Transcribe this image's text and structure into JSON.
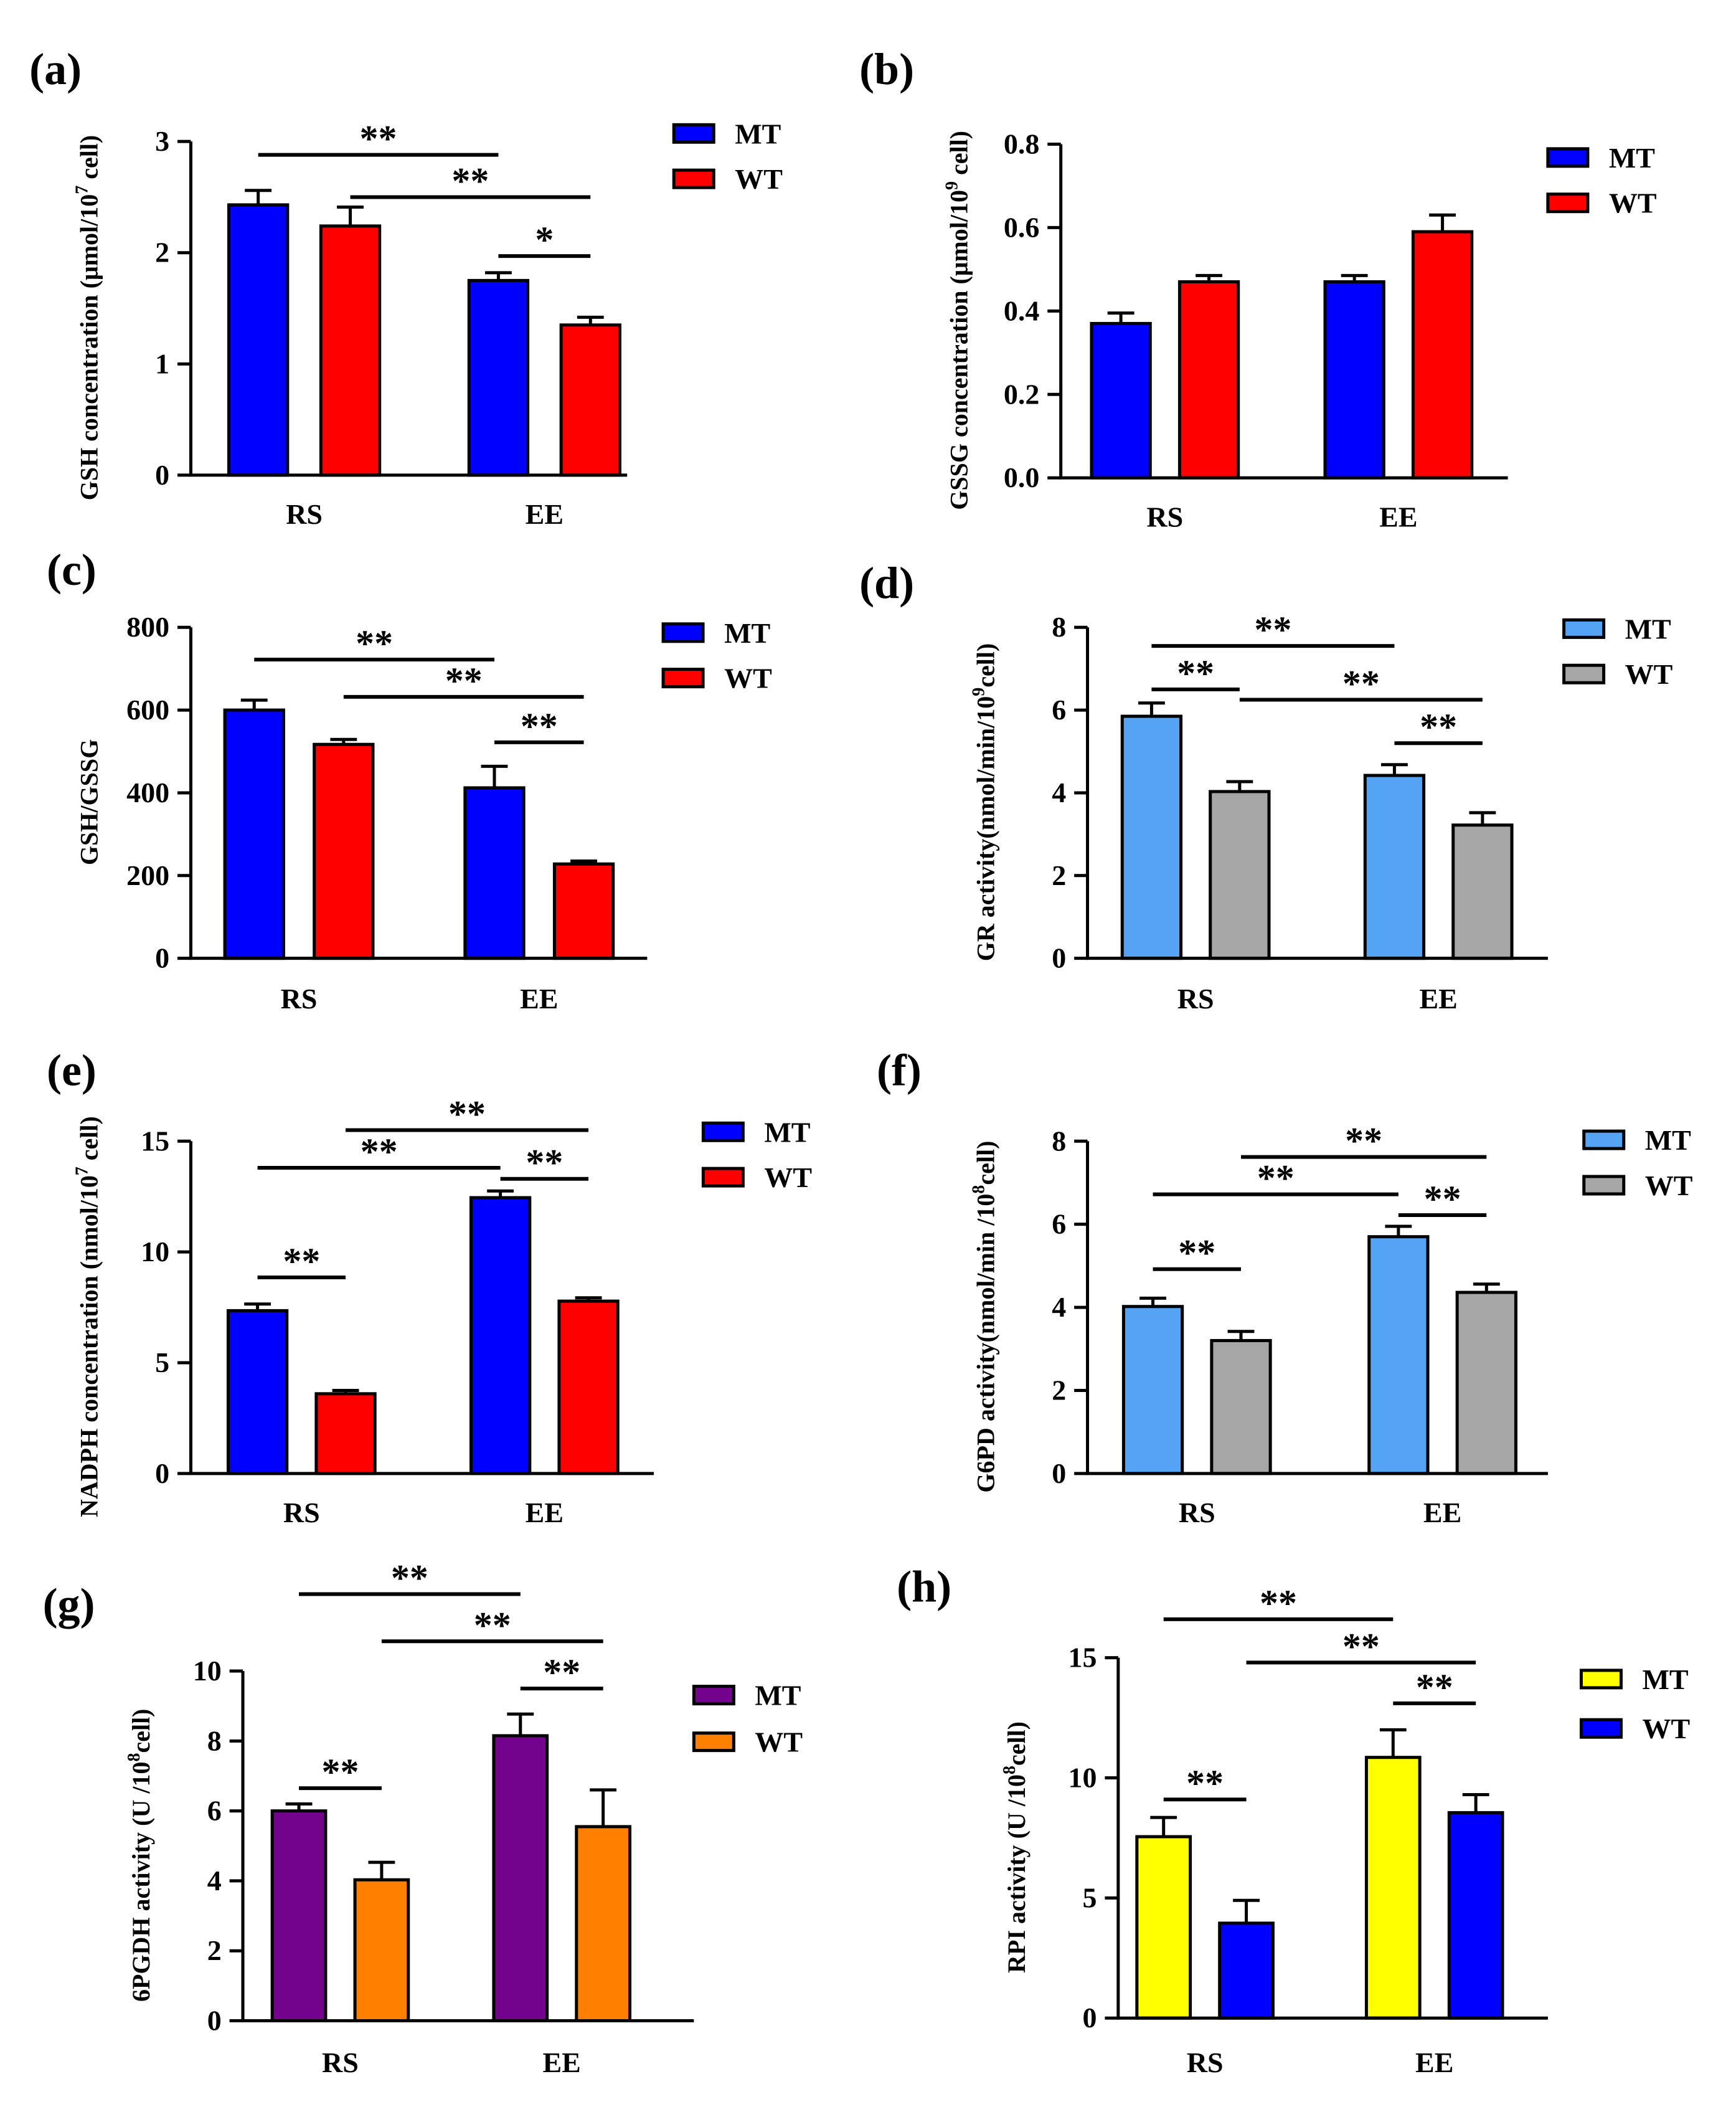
{
  "chart_data": [
    {
      "type": "bar",
      "panel_label": "(a)",
      "categories": [
        "RS",
        "EE"
      ],
      "ylabel": "GSH concentration (μmol/10",
      "ylabel_sup": "7",
      "ylabel_tail": " cell)",
      "ylim": [
        0,
        3
      ],
      "yticks": [
        0,
        1,
        2,
        3
      ],
      "ytick_labels": [
        "0",
        "1",
        "2",
        "3"
      ],
      "series": [
        {
          "name": "MT",
          "color": "#0000ff",
          "values": [
            2.43,
            1.75
          ],
          "errors": [
            0.13,
            0.07
          ]
        },
        {
          "name": "WT",
          "color": "#ff0000",
          "values": [
            2.24,
            1.35
          ],
          "errors": [
            0.17,
            0.07
          ]
        }
      ],
      "significance": [
        {
          "label": "**",
          "from": [
            0,
            0
          ],
          "to": [
            1,
            0
          ],
          "y": 2.88
        },
        {
          "label": "**",
          "from": [
            0,
            1
          ],
          "to": [
            1,
            1
          ],
          "y": 2.5
        },
        {
          "label": "*",
          "from": [
            1,
            0
          ],
          "to": [
            1,
            1
          ],
          "y": 1.97
        }
      ]
    },
    {
      "type": "bar",
      "panel_label": "(b)",
      "categories": [
        "RS",
        "EE"
      ],
      "ylabel": "GSSG concentration (μmol/10",
      "ylabel_sup": "9",
      "ylabel_tail": " cell)",
      "ylim": [
        0,
        0.8
      ],
      "yticks": [
        0,
        0.2,
        0.4,
        0.6,
        0.8
      ],
      "ytick_labels": [
        "0.0",
        "0.2",
        "0.4",
        "0.6",
        "0.8"
      ],
      "series": [
        {
          "name": "MT",
          "color": "#0000ff",
          "values": [
            0.37,
            0.47
          ],
          "errors": [
            0.025,
            0.015
          ]
        },
        {
          "name": "WT",
          "color": "#ff0000",
          "values": [
            0.47,
            0.59
          ],
          "errors": [
            0.015,
            0.04
          ]
        }
      ],
      "significance": []
    },
    {
      "type": "bar",
      "panel_label": "(c)",
      "categories": [
        "RS",
        "EE"
      ],
      "ylabel": "GSH/GSSG",
      "ylabel_sup": "",
      "ylabel_tail": "",
      "ylim": [
        0,
        800
      ],
      "yticks": [
        0,
        200,
        400,
        600,
        800
      ],
      "ytick_labels": [
        "0",
        "200",
        "400",
        "600",
        "800"
      ],
      "series": [
        {
          "name": "MT",
          "color": "#0000ff",
          "values": [
            600,
            412
          ],
          "errors": [
            24,
            52
          ]
        },
        {
          "name": "WT",
          "color": "#ff0000",
          "values": [
            517,
            228
          ],
          "errors": [
            12,
            7
          ]
        }
      ],
      "significance": [
        {
          "label": "**",
          "from": [
            0,
            0
          ],
          "to": [
            1,
            0
          ],
          "y": 722
        },
        {
          "label": "**",
          "from": [
            0,
            1
          ],
          "to": [
            1,
            1
          ],
          "y": 632
        },
        {
          "label": "**",
          "from": [
            1,
            0
          ],
          "to": [
            1,
            1
          ],
          "y": 522
        }
      ]
    },
    {
      "type": "bar",
      "panel_label": "(d)",
      "categories": [
        "RS",
        "EE"
      ],
      "ylabel": "GR activity(nmol/min/10",
      "ylabel_sup": "9",
      "ylabel_tail": "cell)",
      "ylim": [
        0,
        8
      ],
      "yticks": [
        0,
        2,
        4,
        6,
        8
      ],
      "ytick_labels": [
        "0",
        "2",
        "4",
        "6",
        "8"
      ],
      "series": [
        {
          "name": "MT",
          "color": "#55a3f5",
          "values": [
            5.85,
            4.42
          ],
          "errors": [
            0.32,
            0.26
          ]
        },
        {
          "name": "WT",
          "color": "#a6a6a6",
          "values": [
            4.03,
            3.22
          ],
          "errors": [
            0.24,
            0.3
          ]
        }
      ],
      "significance": [
        {
          "label": "**",
          "from": [
            0,
            0
          ],
          "to": [
            1,
            0
          ],
          "y": 7.55
        },
        {
          "label": "**",
          "from": [
            0,
            0
          ],
          "to": [
            0,
            1
          ],
          "y": 6.5
        },
        {
          "label": "**",
          "from": [
            0,
            1
          ],
          "to": [
            1,
            1
          ],
          "y": 6.25
        },
        {
          "label": "**",
          "from": [
            1,
            0
          ],
          "to": [
            1,
            1
          ],
          "y": 5.2
        }
      ]
    },
    {
      "type": "bar",
      "panel_label": "(e)",
      "categories": [
        "RS",
        "EE"
      ],
      "ylabel": "NADPH concentration (nmol/10",
      "ylabel_sup": "7",
      "ylabel_tail": " cell)",
      "ylim": [
        0,
        15
      ],
      "yticks": [
        0,
        5,
        10,
        15
      ],
      "ytick_labels": [
        "0",
        "5",
        "10",
        "15"
      ],
      "series": [
        {
          "name": "MT",
          "color": "#0000ff",
          "values": [
            7.35,
            12.45
          ],
          "errors": [
            0.3,
            0.3
          ]
        },
        {
          "name": "WT",
          "color": "#ff0000",
          "values": [
            3.6,
            7.78
          ],
          "errors": [
            0.15,
            0.15
          ]
        }
      ],
      "significance": [
        {
          "label": "**",
          "from": [
            0,
            1
          ],
          "to": [
            1,
            1
          ],
          "y": 15.5
        },
        {
          "label": "**",
          "from": [
            0,
            0
          ],
          "to": [
            1,
            0
          ],
          "y": 13.8
        },
        {
          "label": "**",
          "from": [
            1,
            0
          ],
          "to": [
            1,
            1
          ],
          "y": 13.3
        },
        {
          "label": "**",
          "from": [
            0,
            0
          ],
          "to": [
            0,
            1
          ],
          "y": 8.85
        }
      ]
    },
    {
      "type": "bar",
      "panel_label": "(f)",
      "categories": [
        "RS",
        "EE"
      ],
      "ylabel": "G6PD activity(nmol/min /10",
      "ylabel_sup": "8",
      "ylabel_tail": "cell)",
      "ylim": [
        0,
        8
      ],
      "yticks": [
        0,
        2,
        4,
        6,
        8
      ],
      "ytick_labels": [
        "0",
        "2",
        "4",
        "6",
        "8"
      ],
      "series": [
        {
          "name": "MT",
          "color": "#55a3f5",
          "values": [
            4.02,
            5.7
          ],
          "errors": [
            0.2,
            0.25
          ]
        },
        {
          "name": "WT",
          "color": "#a6a6a6",
          "values": [
            3.2,
            4.36
          ],
          "errors": [
            0.22,
            0.2
          ]
        }
      ],
      "significance": [
        {
          "label": "**",
          "from": [
            0,
            1
          ],
          "to": [
            1,
            1
          ],
          "y": 7.62
        },
        {
          "label": "**",
          "from": [
            0,
            0
          ],
          "to": [
            1,
            0
          ],
          "y": 6.72
        },
        {
          "label": "**",
          "from": [
            1,
            0
          ],
          "to": [
            1,
            1
          ],
          "y": 6.22
        },
        {
          "label": "**",
          "from": [
            0,
            0
          ],
          "to": [
            0,
            1
          ],
          "y": 4.92
        }
      ]
    },
    {
      "type": "bar",
      "panel_label": "(g)",
      "categories": [
        "RS",
        "EE"
      ],
      "ylabel": "6PGDH activity (U /10",
      "ylabel_sup": "8",
      "ylabel_tail": "cell)",
      "ylim": [
        0,
        10
      ],
      "yticks": [
        0,
        2,
        4,
        6,
        8,
        10
      ],
      "ytick_labels": [
        "0",
        "2",
        "4",
        "6",
        "8",
        "10"
      ],
      "series": [
        {
          "name": "MT",
          "color": "#74048d",
          "values": [
            6.0,
            8.15
          ],
          "errors": [
            0.2,
            0.62
          ]
        },
        {
          "name": "WT",
          "color": "#ff7f00",
          "values": [
            4.03,
            5.55
          ],
          "errors": [
            0.5,
            1.05
          ]
        }
      ],
      "significance": [
        {
          "label": "**",
          "from": [
            0,
            0
          ],
          "to": [
            1,
            0
          ],
          "y": 12.2
        },
        {
          "label": "**",
          "from": [
            0,
            1
          ],
          "to": [
            1,
            1
          ],
          "y": 10.85
        },
        {
          "label": "**",
          "from": [
            1,
            0
          ],
          "to": [
            1,
            1
          ],
          "y": 9.5
        },
        {
          "label": "**",
          "from": [
            0,
            0
          ],
          "to": [
            0,
            1
          ],
          "y": 6.65
        }
      ]
    },
    {
      "type": "bar",
      "panel_label": "(h)",
      "categories": [
        "RS",
        "EE"
      ],
      "ylabel": "RPI activity (U /10",
      "ylabel_sup": "8",
      "ylabel_tail": "cell)",
      "ylim": [
        0,
        15
      ],
      "yticks": [
        0,
        5,
        10,
        15
      ],
      "ytick_labels": [
        "0",
        "5",
        "10",
        "15"
      ],
      "series": [
        {
          "name": "MT",
          "color": "#ffff00",
          "values": [
            7.55,
            10.85
          ],
          "errors": [
            0.8,
            1.15
          ]
        },
        {
          "name": "WT",
          "color": "#0000ff",
          "values": [
            3.95,
            8.55
          ],
          "errors": [
            0.95,
            0.75
          ]
        }
      ],
      "significance": [
        {
          "label": "**",
          "from": [
            0,
            0
          ],
          "to": [
            1,
            0
          ],
          "y": 16.6
        },
        {
          "label": "**",
          "from": [
            0,
            1
          ],
          "to": [
            1,
            1
          ],
          "y": 14.8
        },
        {
          "label": "**",
          "from": [
            1,
            0
          ],
          "to": [
            1,
            1
          ],
          "y": 13.1
        },
        {
          "label": "**",
          "from": [
            0,
            0
          ],
          "to": [
            0,
            1
          ],
          "y": 9.1
        }
      ]
    }
  ]
}
